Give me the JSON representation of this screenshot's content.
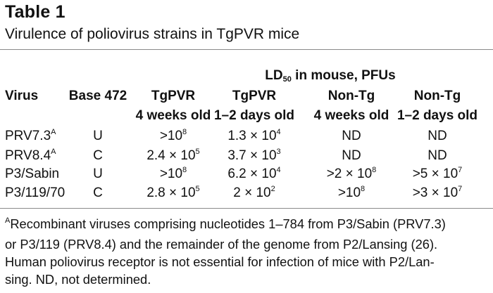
{
  "table": {
    "label": "Table 1",
    "caption": "Virulence of poliovirus strains in TgPVR mice",
    "spanner": {
      "prefix": "LD",
      "subscript": "50",
      "suffix": " in mouse, PFUs"
    },
    "headers": {
      "virus": "Virus",
      "base": "Base 472",
      "c1": {
        "line1": "TgPVR",
        "line2": "4 weeks old"
      },
      "c2": {
        "line1": "TgPVR",
        "line2": "1–2 days old"
      },
      "c3": {
        "line1": "Non-Tg",
        "line2": "4 weeks old"
      },
      "c4": {
        "line1": "Non-Tg",
        "line2": "1–2 days old"
      }
    },
    "rows": [
      {
        "virus": "PRV7.3",
        "virus_sup": "A",
        "base": "U",
        "c1": {
          "base": ">10",
          "exp": "8"
        },
        "c2": {
          "base": "1.3 × 10",
          "exp": "4"
        },
        "c3": {
          "base": "ND",
          "exp": ""
        },
        "c4": {
          "base": "ND",
          "exp": ""
        }
      },
      {
        "virus": "PRV8.4",
        "virus_sup": "A",
        "base": "C",
        "c1": {
          "base": "2.4 × 10",
          "exp": "5"
        },
        "c2": {
          "base": "3.7 × 10",
          "exp": "3"
        },
        "c3": {
          "base": "ND",
          "exp": ""
        },
        "c4": {
          "base": "ND",
          "exp": ""
        }
      },
      {
        "virus": "P3/Sabin",
        "virus_sup": "",
        "base": "U",
        "c1": {
          "base": ">10",
          "exp": "8"
        },
        "c2": {
          "base": "6.2 × 10",
          "exp": "4"
        },
        "c3": {
          "base": ">2 × 10",
          "exp": "8"
        },
        "c4": {
          "base": ">5 × 10",
          "exp": "7"
        }
      },
      {
        "virus": "P3/119/70",
        "virus_sup": "",
        "base": "C",
        "c1": {
          "base": "2.8 × 10",
          "exp": "5"
        },
        "c2": {
          "base": "2 × 10",
          "exp": "2"
        },
        "c3": {
          "base": ">10",
          "exp": "8"
        },
        "c4": {
          "base": ">3 × 10",
          "exp": "7"
        }
      }
    ],
    "footnote": {
      "marker": "A",
      "lines": [
        "Recombinant viruses comprising nucleotides 1–784 from P3/Sabin (PRV7.3)",
        "or P3/119 (PRV8.4) and the remainder of the genome from P2/Lansing (26).",
        "Human poliovirus receptor is not essential for infection of mice with P2/Lan-",
        "sing. ND, not determined."
      ]
    }
  }
}
